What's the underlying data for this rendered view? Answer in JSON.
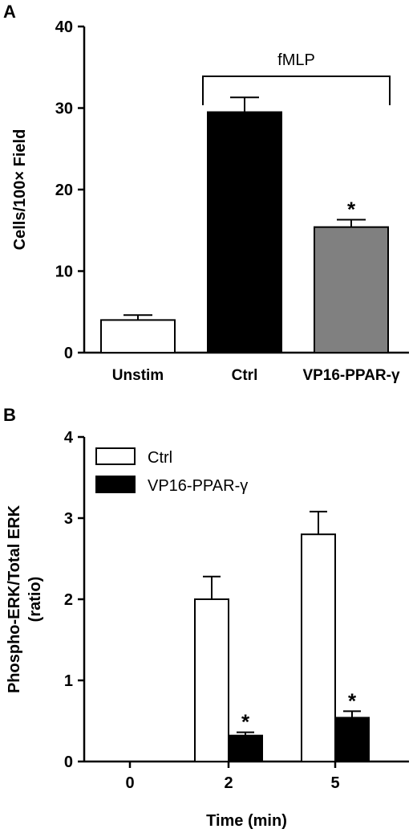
{
  "chart_data": [
    {
      "panel": "A",
      "type": "bar",
      "ylabel": "Cells/100× Field",
      "ylim": [
        0,
        40
      ],
      "yticks": [
        0,
        10,
        20,
        30,
        40
      ],
      "categories": [
        "Unstim",
        "Ctrl",
        "VP16-PPAR-γ"
      ],
      "values": [
        4.0,
        29.5,
        15.4
      ],
      "errors": [
        0.6,
        1.8,
        0.9
      ],
      "bar_colors": [
        "#ffffff",
        "#000000",
        "#808080"
      ],
      "significance": [
        "",
        "",
        "*"
      ],
      "bracket_label": "fMLP",
      "bracket_groups": [
        1,
        2
      ]
    },
    {
      "panel": "B",
      "type": "bar",
      "ylabel": "Phospho-ERK/Total ERK (ratio)",
      "ylabel_lines": [
        "Phospho-ERK/Total ERK",
        "(ratio)"
      ],
      "xlabel": "Time (min)",
      "ylim": [
        0,
        4
      ],
      "yticks": [
        0,
        1,
        2,
        3,
        4
      ],
      "categories": [
        "0",
        "2",
        "5"
      ],
      "legend_position": "top-left",
      "series": [
        {
          "name": "Ctrl",
          "color": "#ffffff",
          "values": [
            0,
            2.0,
            2.8
          ],
          "errors": [
            0,
            0.28,
            0.28
          ],
          "significance": [
            "",
            "",
            ""
          ]
        },
        {
          "name": "VP16-PPAR-γ",
          "color": "#000000",
          "values": [
            0,
            0.32,
            0.54
          ],
          "errors": [
            0,
            0.04,
            0.08
          ],
          "significance": [
            "",
            "*",
            "*"
          ]
        }
      ]
    }
  ]
}
